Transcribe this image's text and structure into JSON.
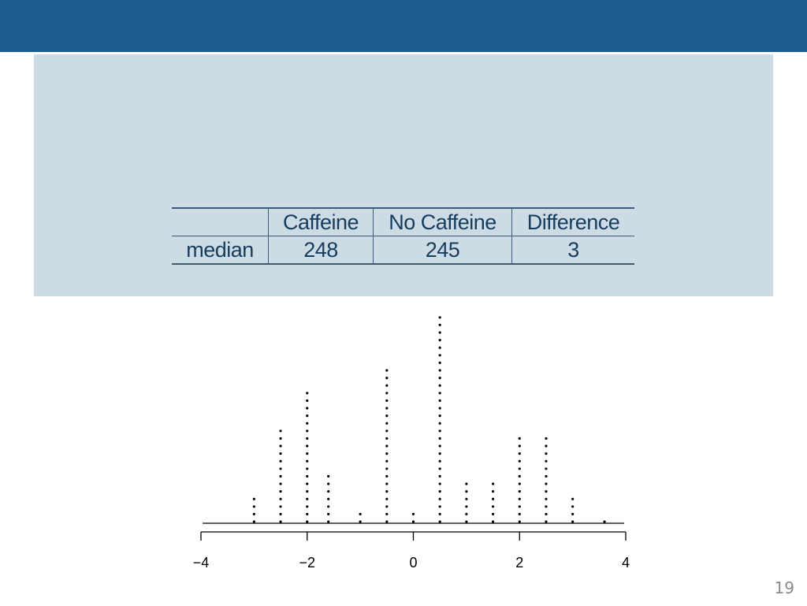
{
  "slide": {
    "page_number": "19"
  },
  "table": {
    "headers": [
      "",
      "Caffeine",
      "No Caffeine",
      "Difference"
    ],
    "rows": [
      {
        "label": "median",
        "values": [
          "248",
          "245",
          "3"
        ]
      }
    ]
  },
  "colors": {
    "header_bar": "#1b5e8f",
    "panel": "#cddbe5",
    "table_text": "#163d5e",
    "dots": "#000000"
  },
  "chart_data": {
    "type": "scatter",
    "subtype": "dot plot",
    "title": "",
    "xlabel": "",
    "ylabel": "",
    "xlim": [
      -4,
      4
    ],
    "x_ticks": [
      -4,
      -2,
      0,
      2,
      4
    ],
    "x_tick_labels": [
      "−4",
      "−2",
      "0",
      "2",
      "4"
    ],
    "grid": false,
    "points": [
      {
        "x": -3.0,
        "count": 4
      },
      {
        "x": -2.5,
        "count": 13
      },
      {
        "x": -2.0,
        "count": 18
      },
      {
        "x": -1.6,
        "count": 7
      },
      {
        "x": -1.0,
        "count": 2
      },
      {
        "x": -0.5,
        "count": 21
      },
      {
        "x": 0.0,
        "count": 2
      },
      {
        "x": 0.5,
        "count": 28
      },
      {
        "x": 1.0,
        "count": 6
      },
      {
        "x": 1.5,
        "count": 6
      },
      {
        "x": 2.0,
        "count": 12
      },
      {
        "x": 2.5,
        "count": 12
      },
      {
        "x": 3.0,
        "count": 4
      },
      {
        "x": 3.6,
        "count": 1
      }
    ]
  }
}
